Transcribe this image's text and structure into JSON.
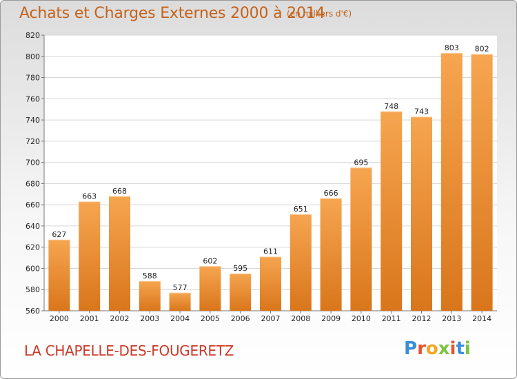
{
  "chart_data": {
    "type": "bar",
    "title": "Achats et Charges Externes 2000 à 2014",
    "subtitle": "(en milliers d'€)",
    "categories": [
      "2000",
      "2001",
      "2002",
      "2003",
      "2004",
      "2005",
      "2006",
      "2007",
      "2008",
      "2009",
      "2010",
      "2011",
      "2012",
      "2013",
      "2014"
    ],
    "values": [
      627,
      663,
      668,
      588,
      577,
      602,
      595,
      611,
      651,
      666,
      695,
      748,
      743,
      803,
      802
    ],
    "ylim": [
      560,
      820
    ],
    "yticks": [
      560,
      580,
      600,
      620,
      640,
      660,
      680,
      700,
      720,
      740,
      760,
      780,
      800,
      820
    ],
    "grid": true,
    "bar_color": "#f0932f"
  },
  "footer": {
    "commune": "LA CHAPELLE-DES-FOUGERETZ",
    "logo": "Proxiti"
  },
  "colors": {
    "title": "#c4621a",
    "commune": "#cc3a2a",
    "logo_letters": [
      "#3a8fd8",
      "#e8522a",
      "#f5a623",
      "#7cc242",
      "#e8522a",
      "#3a8fd8",
      "#7cc242"
    ]
  }
}
